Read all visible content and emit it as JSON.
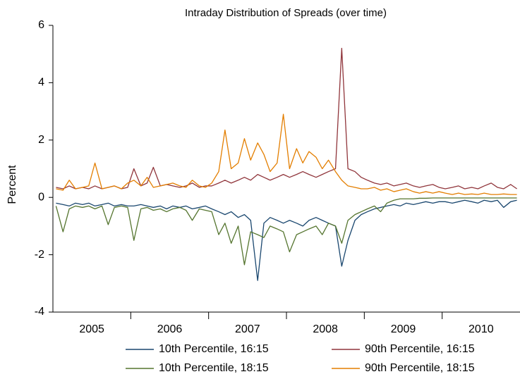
{
  "chart_data": {
    "type": "line",
    "title": "Intraday Distribution of Spreads (over time)",
    "y_label": "Percent",
    "xlim": [
      2005,
      2011
    ],
    "ylim": [
      -4,
      6
    ],
    "yticks": [
      -4,
      -2,
      0,
      2,
      4,
      6
    ],
    "xticks": [
      {
        "value": 2005.5,
        "label": "2005"
      },
      {
        "value": 2006.5,
        "label": "2006"
      },
      {
        "value": 2007.5,
        "label": "2007"
      },
      {
        "value": 2008.5,
        "label": "2008"
      },
      {
        "value": 2009.5,
        "label": "2009"
      },
      {
        "value": 2010.5,
        "label": "2010"
      }
    ],
    "x_boundaries": [
      2006,
      2007,
      2008,
      2009,
      2010
    ],
    "grid": false,
    "x": [
      2005.04,
      2005.13,
      2005.21,
      2005.29,
      2005.38,
      2005.46,
      2005.54,
      2005.63,
      2005.71,
      2005.79,
      2005.88,
      2005.96,
      2006.04,
      2006.13,
      2006.21,
      2006.29,
      2006.38,
      2006.46,
      2006.54,
      2006.63,
      2006.71,
      2006.79,
      2006.88,
      2006.96,
      2007.04,
      2007.13,
      2007.21,
      2007.29,
      2007.38,
      2007.46,
      2007.54,
      2007.63,
      2007.71,
      2007.79,
      2007.88,
      2007.96,
      2008.04,
      2008.13,
      2008.21,
      2008.29,
      2008.38,
      2008.46,
      2008.54,
      2008.63,
      2008.71,
      2008.79,
      2008.88,
      2008.96,
      2009.04,
      2009.13,
      2009.21,
      2009.29,
      2009.38,
      2009.46,
      2009.54,
      2009.63,
      2009.71,
      2009.79,
      2009.88,
      2009.96,
      2010.04,
      2010.13,
      2010.21,
      2010.29,
      2010.38,
      2010.46,
      2010.54,
      2010.63,
      2010.71,
      2010.79,
      2010.88,
      2010.96
    ],
    "series": [
      {
        "name": "10th Percentile, 16:15",
        "color": "#1a476f",
        "values": [
          -0.2,
          -0.25,
          -0.3,
          -0.2,
          -0.25,
          -0.2,
          -0.3,
          -0.25,
          -0.2,
          -0.3,
          -0.25,
          -0.3,
          -0.3,
          -0.25,
          -0.3,
          -0.35,
          -0.3,
          -0.4,
          -0.3,
          -0.35,
          -0.3,
          -0.4,
          -0.35,
          -0.3,
          -0.4,
          -0.5,
          -0.6,
          -0.5,
          -0.7,
          -0.6,
          -0.8,
          -2.9,
          -0.9,
          -0.7,
          -0.8,
          -0.9,
          -0.8,
          -0.9,
          -1.0,
          -0.8,
          -0.7,
          -0.8,
          -0.9,
          -1.0,
          -2.4,
          -1.5,
          -0.8,
          -0.6,
          -0.5,
          -0.4,
          -0.35,
          -0.3,
          -0.25,
          -0.3,
          -0.2,
          -0.25,
          -0.2,
          -0.15,
          -0.2,
          -0.15,
          -0.15,
          -0.2,
          -0.15,
          -0.1,
          -0.15,
          -0.2,
          -0.1,
          -0.15,
          -0.1,
          -0.35,
          -0.15,
          -0.1
        ]
      },
      {
        "name": "90th Percentile, 16:15",
        "color": "#90353b",
        "values": [
          0.35,
          0.3,
          0.4,
          0.3,
          0.35,
          0.3,
          0.4,
          0.3,
          0.35,
          0.4,
          0.3,
          0.35,
          1.0,
          0.4,
          0.5,
          1.05,
          0.4,
          0.45,
          0.4,
          0.35,
          0.4,
          0.5,
          0.35,
          0.4,
          0.4,
          0.5,
          0.6,
          0.5,
          0.6,
          0.7,
          0.6,
          0.8,
          0.7,
          0.6,
          0.7,
          0.8,
          0.7,
          0.8,
          0.9,
          0.8,
          0.7,
          0.8,
          0.9,
          1.0,
          5.2,
          1.0,
          0.9,
          0.7,
          0.6,
          0.5,
          0.45,
          0.5,
          0.4,
          0.45,
          0.5,
          0.4,
          0.35,
          0.4,
          0.45,
          0.35,
          0.3,
          0.35,
          0.4,
          0.3,
          0.35,
          0.3,
          0.4,
          0.5,
          0.35,
          0.3,
          0.45,
          0.3
        ]
      },
      {
        "name": "10th Percentile, 18:15",
        "color": "#55752f",
        "values": [
          -0.3,
          -1.2,
          -0.4,
          -0.3,
          -0.35,
          -0.3,
          -0.4,
          -0.3,
          -0.95,
          -0.35,
          -0.3,
          -0.35,
          -1.5,
          -0.4,
          -0.35,
          -0.45,
          -0.4,
          -0.5,
          -0.4,
          -0.35,
          -0.45,
          -0.8,
          -0.4,
          -0.45,
          -0.5,
          -1.3,
          -0.9,
          -1.6,
          -1.0,
          -2.35,
          -1.2,
          -1.3,
          -1.4,
          -1.0,
          -1.1,
          -1.2,
          -1.9,
          -1.3,
          -1.2,
          -1.1,
          -1.0,
          -1.3,
          -0.9,
          -1.0,
          -1.6,
          -0.8,
          -0.6,
          -0.5,
          -0.4,
          -0.3,
          -0.5,
          -0.2,
          -0.1,
          -0.05,
          -0.05,
          -0.05,
          -0.03,
          -0.03,
          -0.02,
          -0.02,
          -0.02,
          -0.02,
          -0.02,
          -0.02,
          -0.02,
          -0.02,
          -0.02,
          -0.02,
          -0.02,
          -0.02,
          -0.02,
          -0.02
        ]
      },
      {
        "name": "90th Percentile, 18:15",
        "color": "#e37e00",
        "values": [
          0.3,
          0.25,
          0.6,
          0.3,
          0.35,
          0.4,
          1.2,
          0.3,
          0.35,
          0.4,
          0.3,
          0.5,
          0.6,
          0.4,
          0.7,
          0.35,
          0.4,
          0.45,
          0.5,
          0.4,
          0.35,
          0.6,
          0.4,
          0.35,
          0.5,
          0.9,
          2.35,
          1.0,
          1.2,
          2.05,
          1.3,
          1.9,
          1.5,
          0.9,
          1.2,
          2.9,
          1.0,
          1.7,
          1.2,
          1.6,
          1.4,
          1.0,
          1.3,
          0.9,
          0.6,
          0.4,
          0.35,
          0.3,
          0.3,
          0.35,
          0.25,
          0.3,
          0.2,
          0.25,
          0.3,
          0.2,
          0.15,
          0.2,
          0.15,
          0.2,
          0.15,
          0.1,
          0.15,
          0.1,
          0.12,
          0.1,
          0.15,
          0.1,
          0.1,
          0.12,
          0.1,
          0.1
        ]
      }
    ]
  }
}
